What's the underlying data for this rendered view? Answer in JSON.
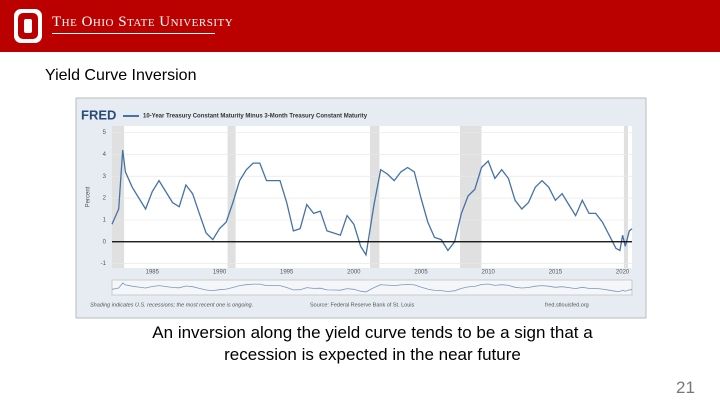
{
  "header": {
    "title": "The Ohio State University"
  },
  "slide": {
    "title": "Yield Curve Inversion",
    "caption_lines": [
      "An inversion along the yield curve tends to be a sign that a",
      "recession is expected in the near future"
    ],
    "page_number": 21
  },
  "chart_data": {
    "type": "line",
    "logo": "FRED",
    "y_label": "Percent",
    "note": "Shading indicates U.S. recessions; the most recent one is ongoing.",
    "source": "Source: Federal Reserve Bank of St. Louis",
    "url": "fred.stlouisfed.org",
    "x": [
      1982.0,
      1982.5,
      1982.8,
      1983.0,
      1983.5,
      1984.0,
      1984.5,
      1985.0,
      1985.5,
      1986.0,
      1986.5,
      1987.0,
      1987.5,
      1988.0,
      1988.5,
      1989.0,
      1989.5,
      1990.0,
      1990.5,
      1991.0,
      1991.5,
      1992.0,
      1992.5,
      1993.0,
      1993.5,
      1994.0,
      1994.5,
      1995.0,
      1995.5,
      1996.0,
      1996.5,
      1997.0,
      1997.5,
      1998.0,
      1998.5,
      1999.0,
      1999.5,
      2000.0,
      2000.5,
      2000.9,
      2001.5,
      2002.0,
      2002.5,
      2003.0,
      2003.5,
      2004.0,
      2004.5,
      2005.0,
      2005.5,
      2006.0,
      2006.5,
      2007.0,
      2007.5,
      2008.0,
      2008.5,
      2009.0,
      2009.5,
      2010.0,
      2010.5,
      2011.0,
      2011.5,
      2012.0,
      2012.5,
      2013.0,
      2013.5,
      2014.0,
      2014.5,
      2015.0,
      2015.5,
      2016.0,
      2016.5,
      2017.0,
      2017.5,
      2018.0,
      2018.5,
      2019.0,
      2019.5,
      2019.8,
      2020.0,
      2020.2,
      2020.5,
      2020.7
    ],
    "series": [
      {
        "name": "10-Year Treasury Constant Maturity Minus 3-Month Treasury Constant Maturity",
        "color": "#4572a7",
        "values": [
          0.8,
          1.5,
          4.2,
          3.2,
          2.5,
          2.0,
          1.5,
          2.3,
          2.8,
          2.3,
          1.8,
          1.6,
          2.6,
          2.2,
          1.3,
          0.4,
          0.1,
          0.6,
          0.9,
          1.8,
          2.8,
          3.3,
          3.6,
          3.6,
          2.8,
          2.8,
          2.8,
          1.8,
          0.5,
          0.6,
          1.7,
          1.3,
          1.4,
          0.5,
          0.4,
          0.3,
          1.2,
          0.8,
          -0.2,
          -0.6,
          1.7,
          3.3,
          3.1,
          2.8,
          3.2,
          3.4,
          3.2,
          2.0,
          0.9,
          0.2,
          0.1,
          -0.4,
          0.0,
          1.3,
          2.1,
          2.4,
          3.4,
          3.7,
          2.9,
          3.3,
          2.9,
          1.9,
          1.5,
          1.8,
          2.5,
          2.8,
          2.5,
          1.9,
          2.2,
          1.7,
          1.2,
          1.9,
          1.3,
          1.3,
          0.9,
          0.3,
          -0.3,
          -0.4,
          0.3,
          -0.2,
          0.5,
          0.6
        ]
      }
    ],
    "recessions": [
      [
        1982.0,
        1982.9
      ],
      [
        1990.6,
        1991.2
      ],
      [
        2001.2,
        2001.9
      ],
      [
        2007.9,
        2009.5
      ],
      [
        2020.1,
        2020.4
      ]
    ],
    "hline": 0,
    "xlim": [
      1982.0,
      2020.7
    ],
    "ylim": [
      -1.2,
      5.3
    ],
    "xticks": [
      1985,
      1990,
      1995,
      2000,
      2005,
      2010,
      2015,
      2020
    ],
    "yticks": [
      -1,
      0,
      1,
      2,
      3,
      4,
      5
    ],
    "grid": true
  }
}
